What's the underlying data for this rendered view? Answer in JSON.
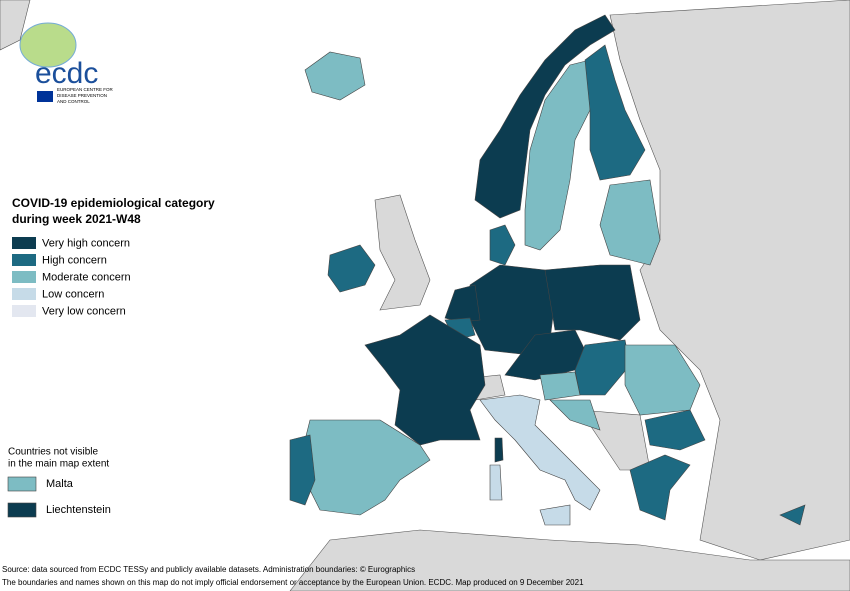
{
  "logo": {
    "name": "ecdc",
    "subtitle": [
      "EUROPEAN CENTRE FOR",
      "DISEASE PREVENTION",
      "AND CONTROL"
    ]
  },
  "legend": {
    "title": [
      "COVID-19 epidemiological category",
      "during week 2021-W48"
    ],
    "items": [
      {
        "label": "Very high concern",
        "color": "#0c3c50"
      },
      {
        "label": "High concern",
        "color": "#1d6a82"
      },
      {
        "label": "Moderate concern",
        "color": "#7dbcc3"
      },
      {
        "label": "Low concern",
        "color": "#c6dbe8"
      },
      {
        "label": "Very low concern",
        "color": "#e3e7f0"
      }
    ]
  },
  "inset": {
    "title": [
      "Countries not visible",
      "in the main map extent"
    ],
    "items": [
      {
        "label": "Malta",
        "category": 2
      },
      {
        "label": "Liechtenstein",
        "category": 0
      }
    ]
  },
  "footer": [
    "Source: data sourced from ECDC TESSy and publicly available datasets. Administration boundaries: © Eurographics",
    "The boundaries and names shown on this map do not imply official endorsement or acceptance by the European Union. ECDC. Map produced on 9 December 2021"
  ]
}
